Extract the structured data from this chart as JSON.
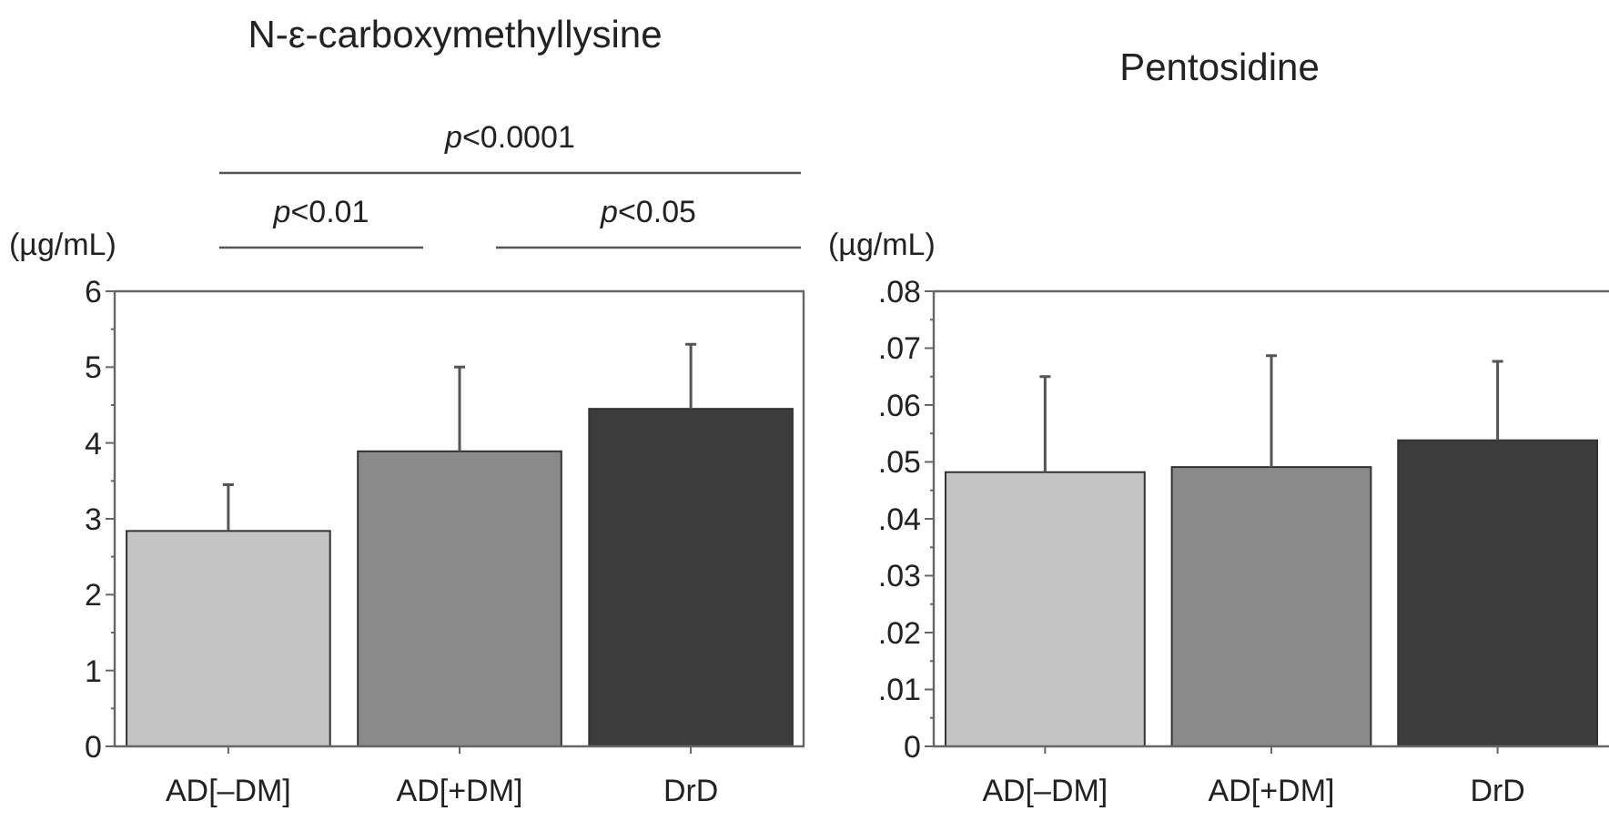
{
  "chart_data": [
    {
      "type": "bar",
      "title": "N-ε-carboxymethyllysine",
      "ylabel": "(µg/mL)",
      "categories": [
        "AD[–DM]",
        "AD[+DM]",
        "DrD"
      ],
      "values": [
        2.84,
        3.89,
        4.45
      ],
      "errors": [
        [
          2.84,
          3.45
        ],
        [
          3.89,
          5.0
        ],
        [
          4.45,
          5.3
        ]
      ],
      "colors": [
        "#c4c4c4",
        "#8a8a8a",
        "#3c3c3c"
      ],
      "ylim": [
        0,
        6
      ],
      "yticks": [
        0,
        {
          "value": 0.5,
          "label": null
        },
        1,
        {
          "value": 1.5,
          "label": null
        },
        2,
        {
          "value": 2.5,
          "label": null
        },
        3,
        {
          "value": 3.5,
          "label": null
        },
        4,
        {
          "value": 4.5,
          "label": null
        },
        5,
        {
          "value": 5.5,
          "label": null
        },
        6
      ],
      "grid": false,
      "annotations": [
        "p<0.0001",
        "p<0.01",
        "p<0.05"
      ]
    },
    {
      "type": "bar",
      "title": "Pentosidine",
      "ylabel": "(µg/mL)",
      "categories": [
        "AD[–DM]",
        "AD[+DM]",
        "DrD"
      ],
      "values": [
        0.0482,
        0.0491,
        0.0538
      ],
      "errors": [
        [
          0.0482,
          0.065
        ],
        [
          0.0491,
          0.0687
        ],
        [
          0.0538,
          0.0677
        ]
      ],
      "colors": [
        "#c4c4c4",
        "#8a8a8a",
        "#3c3c3c"
      ],
      "ylim": [
        0,
        0.08
      ],
      "yticks": [
        0,
        {
          "value": 0.005,
          "label": null
        },
        {
          "value": 0.01,
          "label": ".01"
        },
        {
          "value": 0.015,
          "label": null
        },
        {
          "value": 0.02,
          "label": ".02"
        },
        {
          "value": 0.025,
          "label": null
        },
        {
          "value": 0.03,
          "label": ".03"
        },
        {
          "value": 0.035,
          "label": null
        },
        {
          "value": 0.04,
          "label": ".04"
        },
        {
          "value": 0.045,
          "label": null
        },
        {
          "value": 0.05,
          "label": ".05"
        },
        {
          "value": 0.055,
          "label": null
        },
        {
          "value": 0.06,
          "label": ".06"
        },
        {
          "value": 0.065,
          "label": null
        },
        {
          "value": 0.07,
          "label": ".07"
        },
        {
          "value": 0.075,
          "label": null
        },
        {
          "value": 0.08,
          "label": ".08"
        }
      ],
      "grid": false
    }
  ]
}
